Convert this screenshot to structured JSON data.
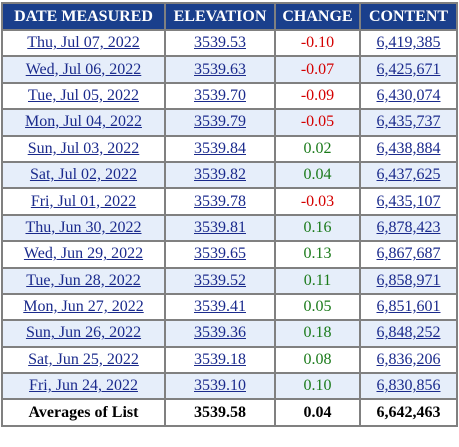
{
  "table": {
    "headers": [
      "DATE MEASURED",
      "ELEVATION",
      "CHANGE",
      "CONTENT"
    ],
    "rows": [
      {
        "date": "Thu, Jul 07, 2022",
        "elevation": "3539.53",
        "change": "-0.10",
        "content": "6,419,385"
      },
      {
        "date": "Wed, Jul 06, 2022",
        "elevation": "3539.63",
        "change": "-0.07",
        "content": "6,425,671"
      },
      {
        "date": "Tue, Jul 05, 2022",
        "elevation": "3539.70",
        "change": "-0.09",
        "content": "6,430,074"
      },
      {
        "date": "Mon, Jul 04, 2022",
        "elevation": "3539.79",
        "change": "-0.05",
        "content": "6,435,737"
      },
      {
        "date": "Sun, Jul 03, 2022",
        "elevation": "3539.84",
        "change": "0.02",
        "content": "6,438,884"
      },
      {
        "date": "Sat, Jul 02, 2022",
        "elevation": "3539.82",
        "change": "0.04",
        "content": "6,437,625"
      },
      {
        "date": "Fri, Jul 01, 2022",
        "elevation": "3539.78",
        "change": "-0.03",
        "content": "6,435,107"
      },
      {
        "date": "Thu, Jun 30, 2022",
        "elevation": "3539.81",
        "change": "0.16",
        "content": "6,878,423"
      },
      {
        "date": "Wed, Jun 29, 2022",
        "elevation": "3539.65",
        "change": "0.13",
        "content": "6,867,687"
      },
      {
        "date": "Tue, Jun 28, 2022",
        "elevation": "3539.52",
        "change": "0.11",
        "content": "6,858,971"
      },
      {
        "date": "Mon, Jun 27, 2022",
        "elevation": "3539.41",
        "change": "0.05",
        "content": "6,851,601"
      },
      {
        "date": "Sun, Jun 26, 2022",
        "elevation": "3539.36",
        "change": "0.18",
        "content": "6,848,252"
      },
      {
        "date": "Sat, Jun 25, 2022",
        "elevation": "3539.18",
        "change": "0.08",
        "content": "6,836,206"
      },
      {
        "date": "Fri, Jun 24, 2022",
        "elevation": "3539.10",
        "change": "0.10",
        "content": "6,830,856"
      }
    ],
    "footer": {
      "label": "Averages of List",
      "elevation": "3539.58",
      "change": "0.04",
      "content": "6,642,463"
    }
  },
  "colors": {
    "header_bg": "#1a3f8c",
    "header_text": "#ffffff",
    "alt_row_bg": "#e6eefa",
    "negative": "#d40000",
    "positive": "#1a7a1a",
    "link": "#1a2a8c"
  }
}
